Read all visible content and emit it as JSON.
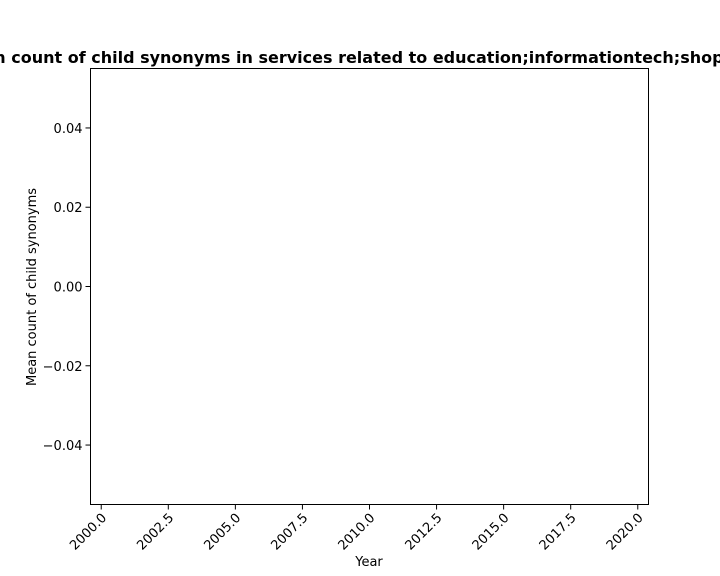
{
  "chart_data": {
    "type": "line",
    "title": "Mean count of child synonyms in services related to education;informationtech;shopping",
    "xlabel": "Year",
    "ylabel": "Mean count of child synonyms",
    "xlim": [
      1999.6,
      2020.4
    ],
    "ylim": [
      -0.055,
      0.055
    ],
    "xticks": [
      2000.0,
      2002.5,
      2005.0,
      2007.5,
      2010.0,
      2012.5,
      2015.0,
      2017.5,
      2020.0
    ],
    "xtick_labels": [
      "2000.0",
      "2002.5",
      "2005.0",
      "2007.5",
      "2010.0",
      "2012.5",
      "2015.0",
      "2017.5",
      "2020.0"
    ],
    "yticks": [
      -0.04,
      -0.02,
      0.0,
      0.02,
      0.04
    ],
    "ytick_labels": [
      "−0.04",
      "−0.02",
      "0.00",
      "0.02",
      "0.04"
    ],
    "series": [],
    "grid": false,
    "legend": "none"
  }
}
